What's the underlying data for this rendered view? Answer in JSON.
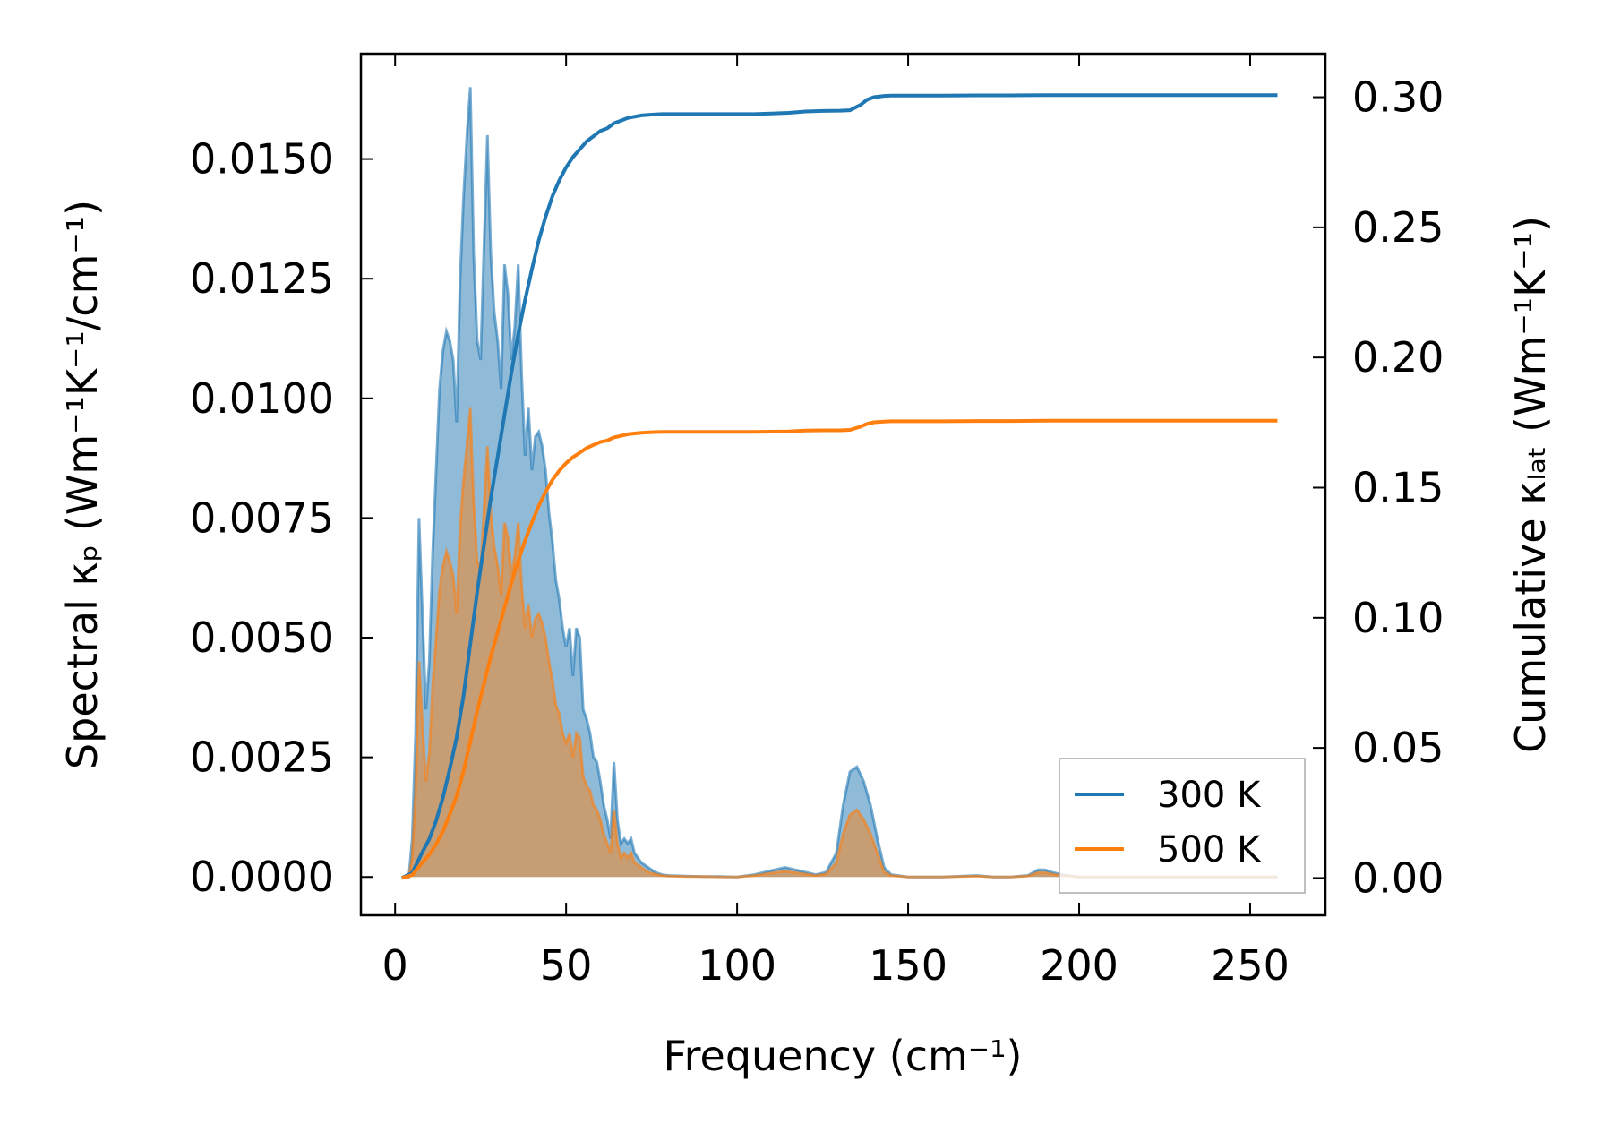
{
  "chart_data": {
    "type": "area",
    "xlabel": "Frequency (cm⁻¹)",
    "ylabel_left": "Spectral κₚ (Wm⁻¹K⁻¹/cm⁻¹)",
    "ylabel_right": "Cumulative κₗₐₜ (Wm⁻¹K⁻¹)",
    "xlim": [
      -10,
      272
    ],
    "ylim_left": [
      -0.0008,
      0.0172
    ],
    "ylim_right": [
      -0.0143,
      0.3167
    ],
    "x_ticks": [
      "0",
      "50",
      "100",
      "150",
      "200",
      "250"
    ],
    "y_left_ticks": [
      "0.0000",
      "0.0025",
      "0.0050",
      "0.0075",
      "0.0100",
      "0.0125",
      "0.0150"
    ],
    "y_right_ticks": [
      "0.00",
      "0.05",
      "0.10",
      "0.15",
      "0.20",
      "0.25",
      "0.30"
    ],
    "legend": {
      "position": "lower-right",
      "entries": [
        "300 K",
        "500 K"
      ]
    },
    "colors": {
      "300 K": "#1f77b4",
      "500 K": "#ff7f0e"
    },
    "series": [
      {
        "name": "300 K",
        "spectral": {
          "x": [
            2,
            4,
            5,
            6,
            7,
            8,
            9,
            10,
            11,
            12,
            13,
            14,
            15,
            16,
            17,
            18,
            19,
            20,
            21,
            22,
            23,
            24,
            25,
            26,
            27,
            28,
            29,
            30,
            31,
            32,
            33,
            34,
            35,
            36,
            37,
            38,
            39,
            40,
            41,
            42,
            43,
            44,
            45,
            46,
            47,
            48,
            49,
            50,
            51,
            52,
            53,
            54,
            55,
            56,
            57,
            58,
            59,
            60,
            61,
            62,
            63,
            64,
            65,
            66,
            67,
            68,
            69,
            70,
            72,
            74,
            76,
            78,
            80,
            85,
            90,
            95,
            100,
            105,
            108,
            111,
            114,
            117,
            120,
            123,
            126,
            129,
            131,
            133,
            135,
            137,
            139,
            141,
            143,
            145,
            150,
            160,
            170,
            175,
            180,
            185,
            188,
            190,
            192,
            195,
            200,
            210,
            220,
            230,
            240,
            250,
            258
          ],
          "y": [
            0,
            0,
            0.0008,
            0.003,
            0.0075,
            0.0055,
            0.0035,
            0.0045,
            0.0068,
            0.0085,
            0.0102,
            0.011,
            0.0114,
            0.0112,
            0.0108,
            0.0095,
            0.0125,
            0.0142,
            0.0155,
            0.0165,
            0.013,
            0.0112,
            0.0108,
            0.0132,
            0.0155,
            0.013,
            0.0118,
            0.0112,
            0.0102,
            0.0128,
            0.0122,
            0.0108,
            0.0115,
            0.0128,
            0.0105,
            0.0088,
            0.0098,
            0.0085,
            0.0092,
            0.0093,
            0.009,
            0.0085,
            0.0076,
            0.007,
            0.0062,
            0.0058,
            0.0052,
            0.0048,
            0.0052,
            0.0042,
            0.0052,
            0.005,
            0.0035,
            0.0033,
            0.003,
            0.0025,
            0.0024,
            0.002,
            0.0015,
            0.0012,
            0.0008,
            0.0024,
            0.0012,
            0.0007,
            0.0008,
            0.0007,
            0.0008,
            0.0005,
            0.0003,
            0.0002,
            0.0001,
            5e-05,
            3e-05,
            2e-05,
            1e-05,
            1e-05,
            0,
            5e-05,
            0.0001,
            0.00015,
            0.0002,
            0.00015,
            0.0001,
            5e-05,
            0.0001,
            0.0005,
            0.0015,
            0.0022,
            0.0023,
            0.002,
            0.0015,
            0.0008,
            0.0002,
            5e-05,
            0,
            0,
            3e-05,
            0,
            0,
            3e-05,
            0.00015,
            0.00015,
            0.0001,
            5e-05,
            0,
            0,
            0,
            0,
            0,
            0,
            0
          ]
        },
        "cumulative": {
          "x": [
            2,
            5,
            8,
            10,
            12,
            14,
            16,
            18,
            20,
            22,
            24,
            26,
            28,
            30,
            32,
            34,
            36,
            38,
            40,
            42,
            44,
            46,
            48,
            50,
            52,
            54,
            56,
            58,
            60,
            62,
            63,
            64,
            66,
            68,
            70,
            72,
            75,
            78,
            80,
            85,
            90,
            95,
            100,
            105,
            110,
            115,
            120,
            125,
            130,
            133,
            136,
            138,
            140,
            143,
            145,
            150,
            160,
            170,
            180,
            190,
            200,
            210,
            220,
            230,
            240,
            250,
            258
          ],
          "y": [
            0,
            0.002,
            0.01,
            0.015,
            0.022,
            0.031,
            0.042,
            0.054,
            0.07,
            0.09,
            0.11,
            0.128,
            0.146,
            0.162,
            0.178,
            0.194,
            0.209,
            0.222,
            0.234,
            0.245,
            0.254,
            0.262,
            0.268,
            0.273,
            0.277,
            0.28,
            0.283,
            0.285,
            0.287,
            0.288,
            0.289,
            0.29,
            0.291,
            0.292,
            0.2925,
            0.293,
            0.2933,
            0.2935,
            0.2935,
            0.2935,
            0.2935,
            0.2935,
            0.2935,
            0.2935,
            0.2937,
            0.294,
            0.2945,
            0.2947,
            0.2948,
            0.295,
            0.297,
            0.299,
            0.3,
            0.3005,
            0.3006,
            0.3006,
            0.3006,
            0.3007,
            0.3007,
            0.3008,
            0.3008,
            0.3008,
            0.3008,
            0.3008,
            0.3008,
            0.3008,
            0.3008
          ]
        }
      },
      {
        "name": "500 K",
        "spectral": {
          "x": [
            2,
            4,
            5,
            6,
            7,
            8,
            9,
            10,
            11,
            12,
            13,
            14,
            15,
            16,
            17,
            18,
            19,
            20,
            21,
            22,
            23,
            24,
            25,
            26,
            27,
            28,
            29,
            30,
            31,
            32,
            33,
            34,
            35,
            36,
            37,
            38,
            39,
            40,
            41,
            42,
            43,
            44,
            45,
            46,
            47,
            48,
            49,
            50,
            51,
            52,
            53,
            54,
            55,
            56,
            57,
            58,
            59,
            60,
            61,
            62,
            63,
            64,
            65,
            66,
            67,
            68,
            69,
            70,
            72,
            74,
            76,
            78,
            80,
            85,
            90,
            95,
            100,
            105,
            108,
            111,
            114,
            117,
            120,
            123,
            126,
            129,
            131,
            133,
            135,
            137,
            139,
            141,
            143,
            145,
            150,
            160,
            170,
            175,
            180,
            185,
            188,
            190,
            192,
            195,
            200,
            210,
            220,
            230,
            240,
            250,
            258
          ],
          "y": [
            0,
            0,
            0.0004,
            0.0018,
            0.0045,
            0.0032,
            0.002,
            0.0026,
            0.004,
            0.005,
            0.006,
            0.0065,
            0.0068,
            0.0066,
            0.0063,
            0.0055,
            0.0073,
            0.0083,
            0.009,
            0.0098,
            0.0078,
            0.0066,
            0.0064,
            0.0077,
            0.009,
            0.0076,
            0.0069,
            0.0065,
            0.0059,
            0.0074,
            0.0071,
            0.0063,
            0.0067,
            0.0074,
            0.0061,
            0.0052,
            0.0057,
            0.005,
            0.0054,
            0.0055,
            0.0053,
            0.005,
            0.0045,
            0.0041,
            0.0036,
            0.0034,
            0.003,
            0.0028,
            0.003,
            0.0025,
            0.003,
            0.0029,
            0.0021,
            0.0019,
            0.0018,
            0.0015,
            0.0014,
            0.0012,
            0.0009,
            0.0007,
            0.0005,
            0.0014,
            0.0007,
            0.0004,
            0.0005,
            0.0004,
            0.0005,
            0.0003,
            0.0002,
            0.0001,
            6e-05,
            3e-05,
            2e-05,
            1e-05,
            1e-05,
            0,
            0,
            3e-05,
            6e-05,
            9e-05,
            0.00012,
            9e-05,
            6e-05,
            3e-05,
            6e-05,
            0.0003,
            0.0009,
            0.0013,
            0.0014,
            0.0012,
            0.0009,
            0.0005,
            0.0001,
            3e-05,
            0,
            0,
            2e-05,
            0,
            0,
            2e-05,
            9e-05,
            9e-05,
            6e-05,
            3e-05,
            0,
            0,
            0,
            0,
            0,
            0,
            0
          ]
        },
        "cumulative": {
          "x": [
            2,
            5,
            8,
            10,
            12,
            14,
            16,
            18,
            20,
            22,
            24,
            26,
            28,
            30,
            32,
            34,
            36,
            38,
            40,
            42,
            44,
            46,
            48,
            50,
            52,
            54,
            56,
            58,
            60,
            62,
            63,
            64,
            66,
            68,
            70,
            72,
            75,
            78,
            80,
            85,
            90,
            95,
            100,
            105,
            110,
            115,
            120,
            125,
            130,
            133,
            136,
            138,
            140,
            143,
            145,
            150,
            160,
            170,
            180,
            190,
            200,
            210,
            220,
            230,
            240,
            250,
            258
          ],
          "y": [
            0,
            0.0012,
            0.006,
            0.009,
            0.013,
            0.018,
            0.0245,
            0.0315,
            0.041,
            0.0525,
            0.0642,
            0.0747,
            0.0852,
            0.0945,
            0.1039,
            0.1132,
            0.122,
            0.1296,
            0.1366,
            0.143,
            0.1483,
            0.153,
            0.1565,
            0.1594,
            0.1617,
            0.1634,
            0.1652,
            0.1664,
            0.1675,
            0.1681,
            0.1687,
            0.1693,
            0.1699,
            0.1705,
            0.1708,
            0.1711,
            0.1713,
            0.1714,
            0.1714,
            0.1714,
            0.1714,
            0.1714,
            0.1714,
            0.1714,
            0.1715,
            0.1716,
            0.1719,
            0.172,
            0.172,
            0.1722,
            0.1734,
            0.1745,
            0.1751,
            0.1754,
            0.1755,
            0.1755,
            0.1755,
            0.1756,
            0.1756,
            0.1757,
            0.1757,
            0.1757,
            0.1757,
            0.1757,
            0.1757,
            0.1757,
            0.1757
          ]
        }
      }
    ]
  }
}
